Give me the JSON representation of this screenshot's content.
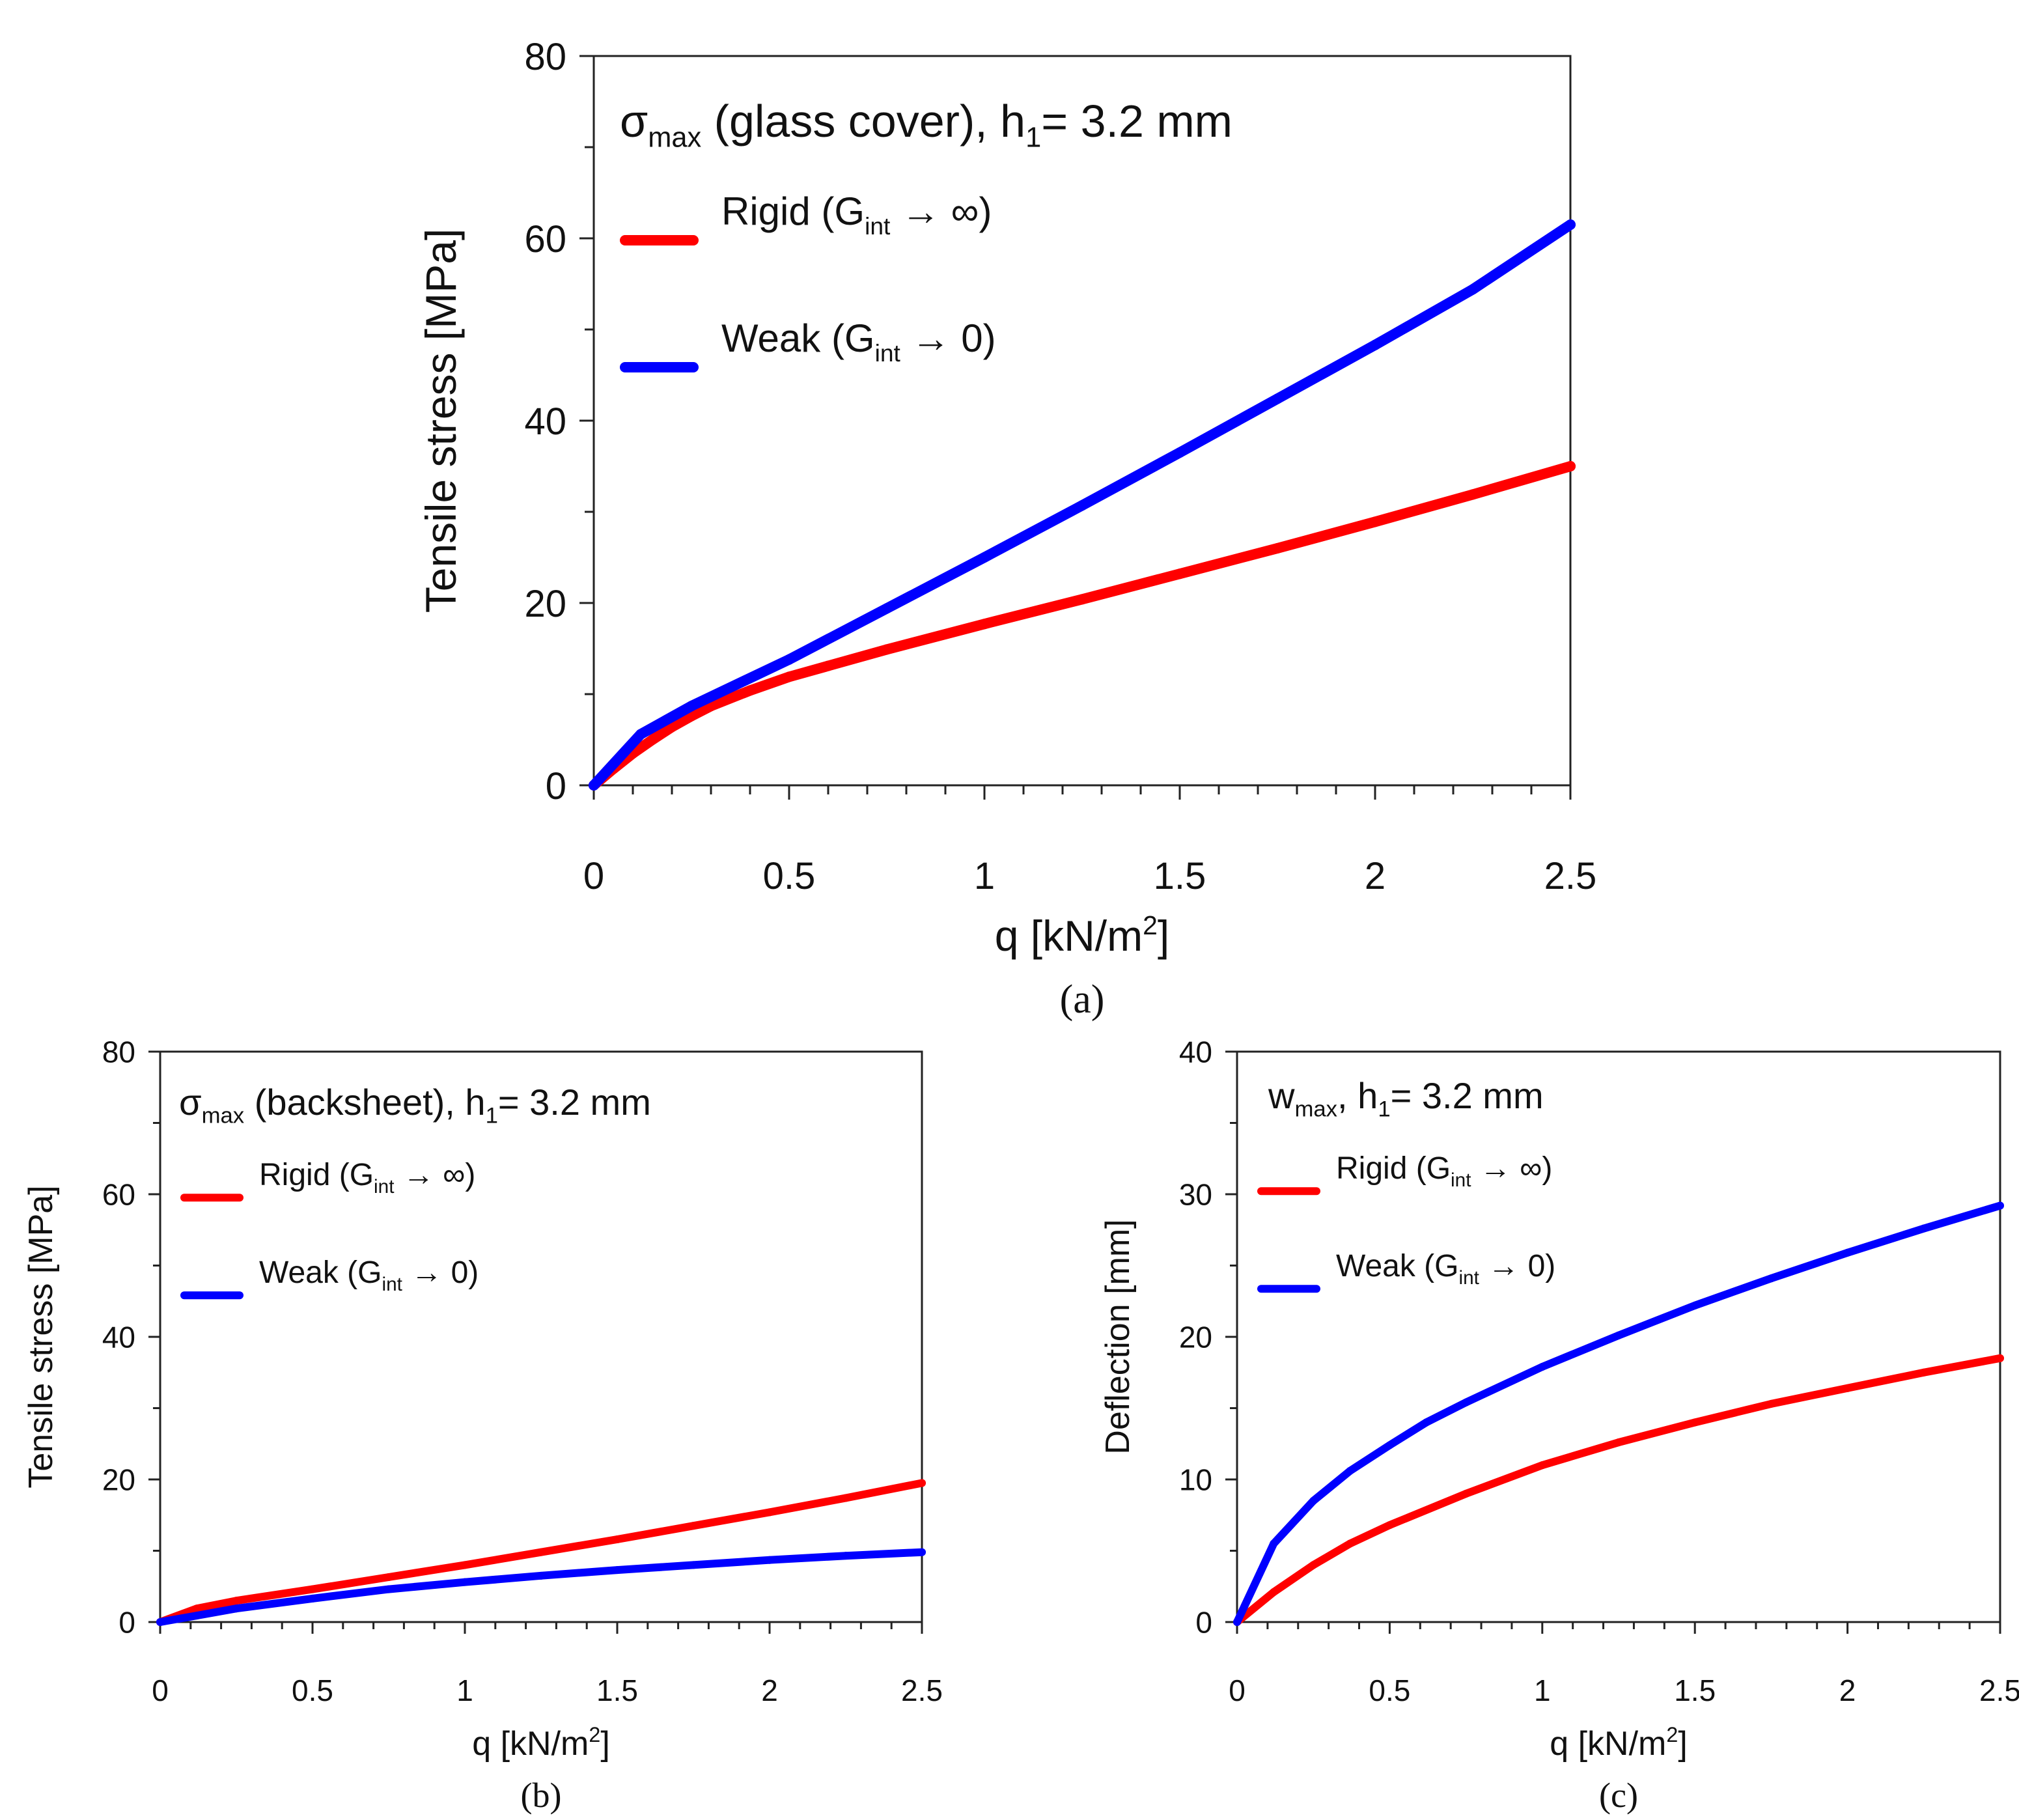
{
  "colors": {
    "rigid": "#ff0000",
    "weak": "#0000ff",
    "axis": "#222222"
  },
  "chart_data": [
    {
      "id": "a",
      "type": "line",
      "caption": "(a)",
      "title": {
        "sigma": "σ",
        "sub": "max",
        "rest": " (glass cover), h",
        "sub2": "1",
        "end": "= 3.2 mm"
      },
      "xlabel": {
        "main": "q  [kN/m",
        "sup": "2",
        "end": "]"
      },
      "ylabel": "Tensile stress  [MPa]",
      "xlim": [
        0,
        2.5
      ],
      "ylim": [
        0,
        80
      ],
      "xticks": [
        0,
        0.5,
        1,
        1.5,
        2,
        2.5
      ],
      "xtick_labels": [
        "0",
        "0.5",
        "1",
        "1.5",
        "2",
        "2.5"
      ],
      "yticks": [
        0,
        20,
        40,
        60,
        80
      ],
      "ytick_labels": [
        "0",
        "20",
        "40",
        "60",
        "80"
      ],
      "series": [
        {
          "name": "Rigid",
          "legend": {
            "main": "Rigid (G",
            "sub": "int",
            "end": " → ∞)"
          },
          "color_key": "rigid",
          "x": [
            0,
            0.05,
            0.1,
            0.15,
            0.2,
            0.25,
            0.3,
            0.4,
            0.5,
            0.6,
            0.75,
            1.0,
            1.25,
            1.5,
            1.75,
            2.0,
            2.25,
            2.5
          ],
          "y": [
            0,
            1.8,
            3.5,
            5.0,
            6.4,
            7.6,
            8.7,
            10.4,
            11.9,
            13.1,
            14.9,
            17.7,
            20.4,
            23.2,
            26.0,
            28.9,
            31.9,
            35.0
          ]
        },
        {
          "name": "Weak",
          "legend": {
            "main": "Weak (G",
            "sub": "int",
            "end": " → 0)"
          },
          "color_key": "weak",
          "x": [
            0,
            0.12,
            0.25,
            0.5,
            0.75,
            1.0,
            1.25,
            1.5,
            1.75,
            2.0,
            2.25,
            2.5
          ],
          "y": [
            0,
            5.6,
            8.7,
            13.8,
            19.4,
            25.0,
            30.7,
            36.5,
            42.4,
            48.3,
            54.4,
            61.5
          ]
        }
      ]
    },
    {
      "id": "b",
      "type": "line",
      "caption": "(b)",
      "title": {
        "sigma": "σ",
        "sub": "max",
        "rest": " (backsheet), h",
        "sub2": "1",
        "end": "= 3.2 mm"
      },
      "xlabel": {
        "main": "q  [kN/m",
        "sup": "2",
        "end": "]"
      },
      "ylabel": "Tensile stress  [MPa]",
      "xlim": [
        0,
        2.5
      ],
      "ylim": [
        0,
        80
      ],
      "xticks": [
        0,
        0.5,
        1,
        1.5,
        2,
        2.5
      ],
      "xtick_labels": [
        "0",
        "0.5",
        "1",
        "1.5",
        "2",
        "2.5"
      ],
      "yticks": [
        0,
        20,
        40,
        60,
        80
      ],
      "ytick_labels": [
        "0",
        "20",
        "40",
        "60",
        "80"
      ],
      "series": [
        {
          "name": "Rigid",
          "legend": {
            "main": "Rigid (G",
            "sub": "int",
            "end": " → ∞)"
          },
          "color_key": "rigid",
          "x": [
            0,
            0.12,
            0.25,
            0.5,
            0.75,
            1.0,
            1.25,
            1.5,
            1.75,
            2.0,
            2.25,
            2.5
          ],
          "y": [
            0,
            1.9,
            3.0,
            4.6,
            6.3,
            8.0,
            9.8,
            11.6,
            13.5,
            15.4,
            17.4,
            19.5
          ]
        },
        {
          "name": "Weak",
          "legend": {
            "main": "Weak (G",
            "sub": "int",
            "end": " → 0)"
          },
          "color_key": "weak",
          "x": [
            0,
            0.12,
            0.25,
            0.5,
            0.75,
            1.0,
            1.25,
            1.5,
            1.75,
            2.0,
            2.25,
            2.5
          ],
          "y": [
            0,
            0.9,
            1.9,
            3.3,
            4.6,
            5.6,
            6.5,
            7.3,
            8.0,
            8.7,
            9.3,
            9.8
          ]
        }
      ]
    },
    {
      "id": "c",
      "type": "line",
      "caption": "(c)",
      "title": {
        "sigma": "w",
        "sub": "max",
        "rest": ", h",
        "sub2": "1",
        "end": "= 3.2 mm"
      },
      "xlabel": {
        "main": "q  [kN/m",
        "sup": "2",
        "end": "]"
      },
      "ylabel": "Deflection  [mm]",
      "xlim": [
        0,
        2.5
      ],
      "ylim": [
        0,
        40
      ],
      "xticks": [
        0,
        0.5,
        1,
        1.5,
        2,
        2.5
      ],
      "xtick_labels": [
        "0",
        "0.5",
        "1",
        "1.5",
        "2",
        "2.5"
      ],
      "yticks": [
        0,
        10,
        20,
        30,
        40
      ],
      "ytick_labels": [
        "0",
        "10",
        "20",
        "30",
        "40"
      ],
      "series": [
        {
          "name": "Rigid",
          "legend": {
            "main": "Rigid (G",
            "sub": "int",
            "end": " → ∞)"
          },
          "color_key": "rigid",
          "x": [
            0,
            0.12,
            0.25,
            0.37,
            0.5,
            0.75,
            1.0,
            1.25,
            1.5,
            1.75,
            2.0,
            2.25,
            2.5
          ],
          "y": [
            0,
            2.1,
            4.0,
            5.5,
            6.8,
            9.0,
            11.0,
            12.6,
            14.0,
            15.3,
            16.4,
            17.5,
            18.5
          ]
        },
        {
          "name": "Weak",
          "legend": {
            "main": "Weak (G",
            "sub": "int",
            "end": " → 0)"
          },
          "color_key": "weak",
          "x": [
            0,
            0.12,
            0.25,
            0.37,
            0.5,
            0.62,
            0.75,
            1.0,
            1.25,
            1.5,
            1.75,
            2.0,
            2.25,
            2.5
          ],
          "y": [
            0,
            5.5,
            8.5,
            10.6,
            12.4,
            14.0,
            15.4,
            17.9,
            20.1,
            22.2,
            24.1,
            25.9,
            27.6,
            29.2
          ]
        }
      ]
    }
  ]
}
